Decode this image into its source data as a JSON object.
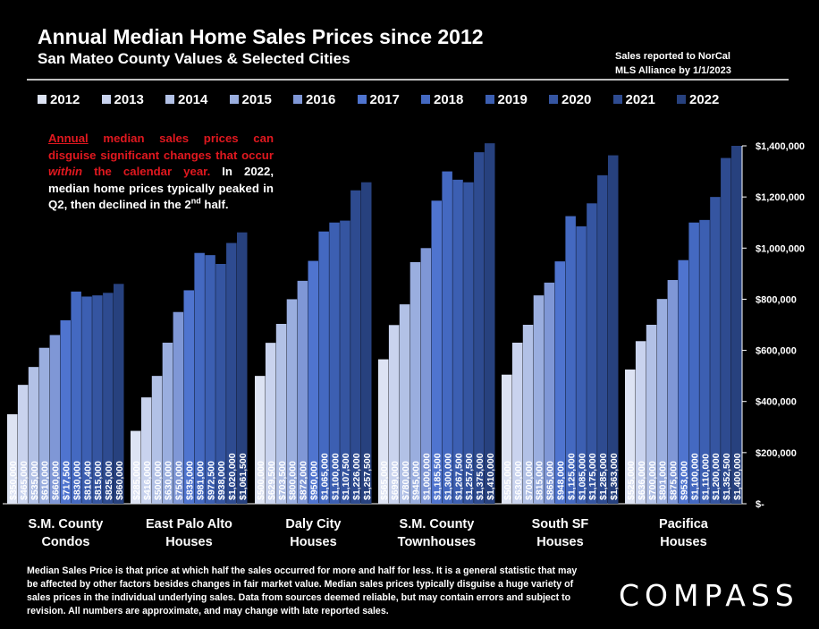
{
  "header": {
    "title": "Annual Median Home Sales Prices since 2012",
    "subtitle": "San Mateo County Values & Selected Cities",
    "source_line1": "Sales reported to NorCal",
    "source_line2": "MLS Alliance by 1/1/2023"
  },
  "note": {
    "red_underlined": "Annual",
    "red_part1": " median sales prices can disguise significant changes that occur ",
    "red_italic": "within",
    "red_part2": " the calendar year.",
    "white_part1": " In 2022, median home prices typically peaked in Q2, then declined in the 2",
    "white_sup": "nd",
    "white_part2": " half."
  },
  "footnote": "Median Sales Price is that price at which half the sales occurred for more and half for less. It is a general statistic that may be affected by other factors besides changes in fair market value. Median sales prices typically disguise a huge variety of sales prices in the individual underlying sales. Data from sources deemed reliable, but may contain errors and subject to revision.  All numbers are approximate, and may change with late reported sales.",
  "logo": "COMPASS",
  "chart_data": {
    "type": "bar",
    "ylim": [
      0,
      1400000
    ],
    "yticks": [
      0,
      200000,
      400000,
      600000,
      800000,
      1000000,
      1200000,
      1400000
    ],
    "ytick_labels": [
      "$-",
      "$200,000",
      "$400,000",
      "$600,000",
      "$800,000",
      "$1,000,000",
      "$1,200,000",
      "$1,400,000"
    ],
    "legend_position": "top",
    "categories": [
      [
        "S.M. County",
        "Condos"
      ],
      [
        "East Palo Alto",
        "Houses"
      ],
      [
        "Daly City",
        "Houses"
      ],
      [
        "S.M. County",
        "Townhouses"
      ],
      [
        "South SF",
        "Houses"
      ],
      [
        "Pacifica",
        "Houses"
      ]
    ],
    "series": [
      {
        "name": "2012",
        "color": "#dde3f3",
        "values": [
          350000,
          285000,
          500000,
          565000,
          505000,
          525000
        ],
        "labels": [
          "$350,000",
          "$285,000",
          "$500,000",
          "$565,000",
          "$505,000",
          "$525,000"
        ]
      },
      {
        "name": "2013",
        "color": "#c9d3ee",
        "values": [
          465000,
          416000,
          629500,
          699000,
          630000,
          636000
        ],
        "labels": [
          "$465,000",
          "$416,000",
          "$629,500",
          "$699,000",
          "$630,000",
          "$636,000"
        ]
      },
      {
        "name": "2014",
        "color": "#b2c1e6",
        "values": [
          535000,
          500000,
          703500,
          780000,
          700000,
          700000
        ],
        "labels": [
          "$535,000",
          "$500,000",
          "$703,500",
          "$780,000",
          "$700,000",
          "$700,000"
        ]
      },
      {
        "name": "2015",
        "color": "#9aaedf",
        "values": [
          610000,
          630000,
          800000,
          945000,
          815000,
          801000
        ],
        "labels": [
          "$610,000",
          "$630,000",
          "$800,000",
          "$945,000",
          "$815,000",
          "$801,000"
        ]
      },
      {
        "name": "2016",
        "color": "#7f97d6",
        "values": [
          660000,
          750000,
          872000,
          1000000,
          865000,
          875000
        ],
        "labels": [
          "$660,000",
          "$750,000",
          "$872,000",
          "$1,000,000",
          "$865,000",
          "$875,000"
        ]
      },
      {
        "name": "2017",
        "color": "#4f74cf",
        "values": [
          717500,
          835000,
          950000,
          1185500,
          948000,
          953000
        ],
        "labels": [
          "$717,500",
          "$835,000",
          "$950,000",
          "$1,185,500",
          "$948,000",
          "$953,000"
        ]
      },
      {
        "name": "2018",
        "color": "#4469c1",
        "values": [
          830000,
          981000,
          1065000,
          1300000,
          1125000,
          1100000
        ],
        "labels": [
          "$830,000",
          "$981,000",
          "$1,065,000",
          "$1,300,000",
          "$1,125,000",
          "$1,100,000"
        ]
      },
      {
        "name": "2019",
        "color": "#3c5fb2",
        "values": [
          810400,
          972500,
          1100000,
          1267500,
          1085000,
          1110000
        ],
        "labels": [
          "$810,400",
          "$972,500",
          "$1,100,000",
          "$1,267,500",
          "$1,085,000",
          "$1,110,000"
        ]
      },
      {
        "name": "2020",
        "color": "#3555a1",
        "values": [
          815000,
          938000,
          1107500,
          1257500,
          1175000,
          1200000
        ],
        "labels": [
          "$815,000",
          "$938,000",
          "$1,107,500",
          "$1,257,500",
          "$1,175,000",
          "$1,200,000"
        ]
      },
      {
        "name": "2021",
        "color": "#2e4b90",
        "values": [
          825000,
          1020000,
          1226000,
          1375000,
          1285000,
          1352500
        ],
        "labels": [
          "$825,000",
          "$1,020,000",
          "$1,226,000",
          "$1,375,000",
          "$1,285,000",
          "$1,352,500"
        ]
      },
      {
        "name": "2022",
        "color": "#27417e",
        "values": [
          860000,
          1061500,
          1257500,
          1410000,
          1363000,
          1400000
        ],
        "labels": [
          "$860,000",
          "$1,061,500",
          "$1,257,500",
          "$1,410,000",
          "$1,363,000",
          "$1,400,000"
        ]
      }
    ]
  }
}
